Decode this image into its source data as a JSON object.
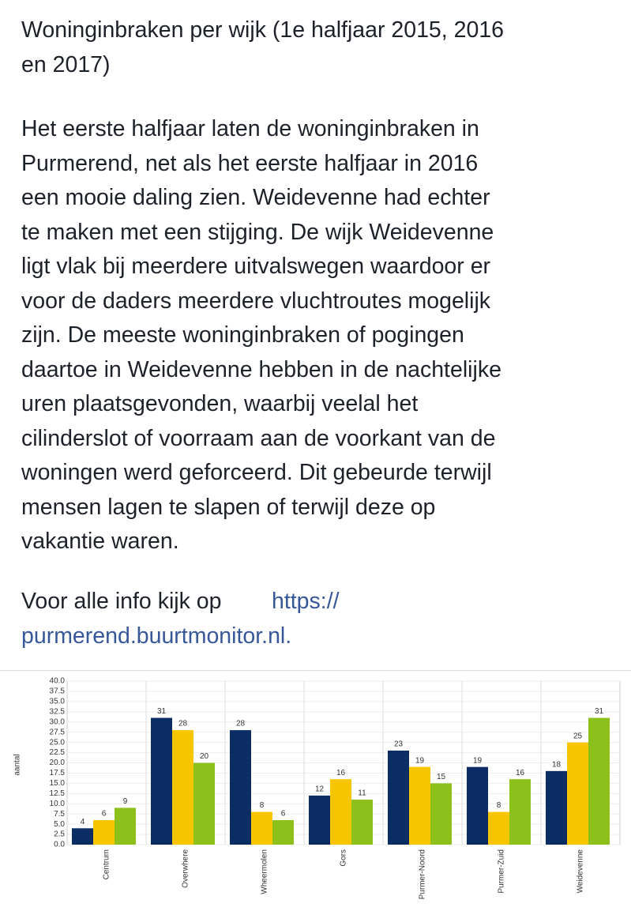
{
  "post": {
    "title_lines": [
      "Woninginbraken per wijk (1e halfjaar 2015, 2016",
      "en 2017)"
    ],
    "body_lines": [
      "Het eerste halfjaar laten de woninginbraken in",
      "Purmerend, net als het eerste halfjaar in 2016",
      "een mooie daling zien. Weidevenne had echter",
      "te maken met een stijging. De wijk Weidevenne",
      "ligt vlak bij meerdere uitvalswegen waardoor er",
      "voor de daders meerdere vluchtroutes mogelijk",
      "zijn. De meeste woninginbraken of pogingen",
      "daartoe in Weidevenne hebben in de nachtelijke",
      "uren plaatsgevonden, waarbij veelal het",
      "cilinderslot of voorraam aan de voorkant van de",
      "woningen werd geforceerd. Dit gebeurde terwijl",
      "mensen lagen te slapen of terwijl deze op",
      "vakantie waren."
    ],
    "info_text": "Voor alle info kijk op",
    "link_lines": [
      "https://",
      "purmerend.buurtmonitor.nl."
    ]
  },
  "chart_data": {
    "type": "bar",
    "ylabel": "aantal",
    "categories": [
      "Centrum",
      "Overwhere",
      "Wheermolen",
      "Gors",
      "Purmer-Noord",
      "Purmer-Zuid",
      "Weidevenne"
    ],
    "series": [
      {
        "color": "#0b2d63",
        "values": [
          4,
          31,
          28,
          12,
          23,
          19,
          18
        ]
      },
      {
        "color": "#f7c600",
        "values": [
          6,
          28,
          8,
          16,
          19,
          8,
          25
        ]
      },
      {
        "color": "#8cc11c",
        "values": [
          9,
          20,
          6,
          11,
          15,
          16,
          31
        ]
      }
    ],
    "ylim": [
      0,
      40
    ],
    "yticks": [
      {
        "value": 0,
        "label": "0.0"
      },
      2.5,
      {
        "value": 5,
        "label": "5.0"
      },
      7.5,
      {
        "value": 10,
        "label": "10.0"
      },
      12.5,
      {
        "value": 15,
        "label": "15.0"
      },
      17.5,
      {
        "value": 20,
        "label": "20.0"
      },
      22.5,
      {
        "value": 25,
        "label": "25.0"
      },
      27.5,
      {
        "value": 30,
        "label": "30.0"
      },
      32.5,
      {
        "value": 35,
        "label": "35.0"
      },
      37.5,
      {
        "value": 40,
        "label": "40.0"
      }
    ],
    "grid": true
  }
}
